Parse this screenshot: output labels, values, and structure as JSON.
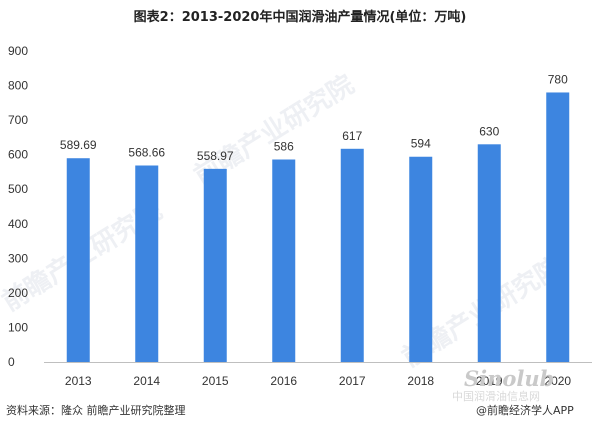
{
  "chart_data": {
    "type": "bar",
    "title": "图表2：2013-2020年中国润滑油产量情况(单位：万吨)",
    "categories": [
      "2013",
      "2014",
      "2015",
      "2016",
      "2017",
      "2018",
      "2019",
      "2020"
    ],
    "values": [
      589.69,
      568.66,
      558.97,
      586,
      617,
      594,
      630,
      780
    ],
    "value_labels": [
      "589.69",
      "568.66",
      "558.97",
      "586",
      "617",
      "594",
      "630",
      "780"
    ],
    "ylim": [
      0,
      900
    ],
    "yticks": [
      0,
      100,
      200,
      300,
      400,
      500,
      600,
      700,
      800,
      900
    ],
    "grid": false,
    "bar_color": "#3d85e0"
  },
  "source": "资料来源：隆众 前瞻产业研究院整理",
  "watermarks": {
    "diagonal": "前瞻产业研究院",
    "site": "Sinolub",
    "site_cn": "中国润滑油信息网",
    "app": "@前瞻经济学人APP"
  }
}
